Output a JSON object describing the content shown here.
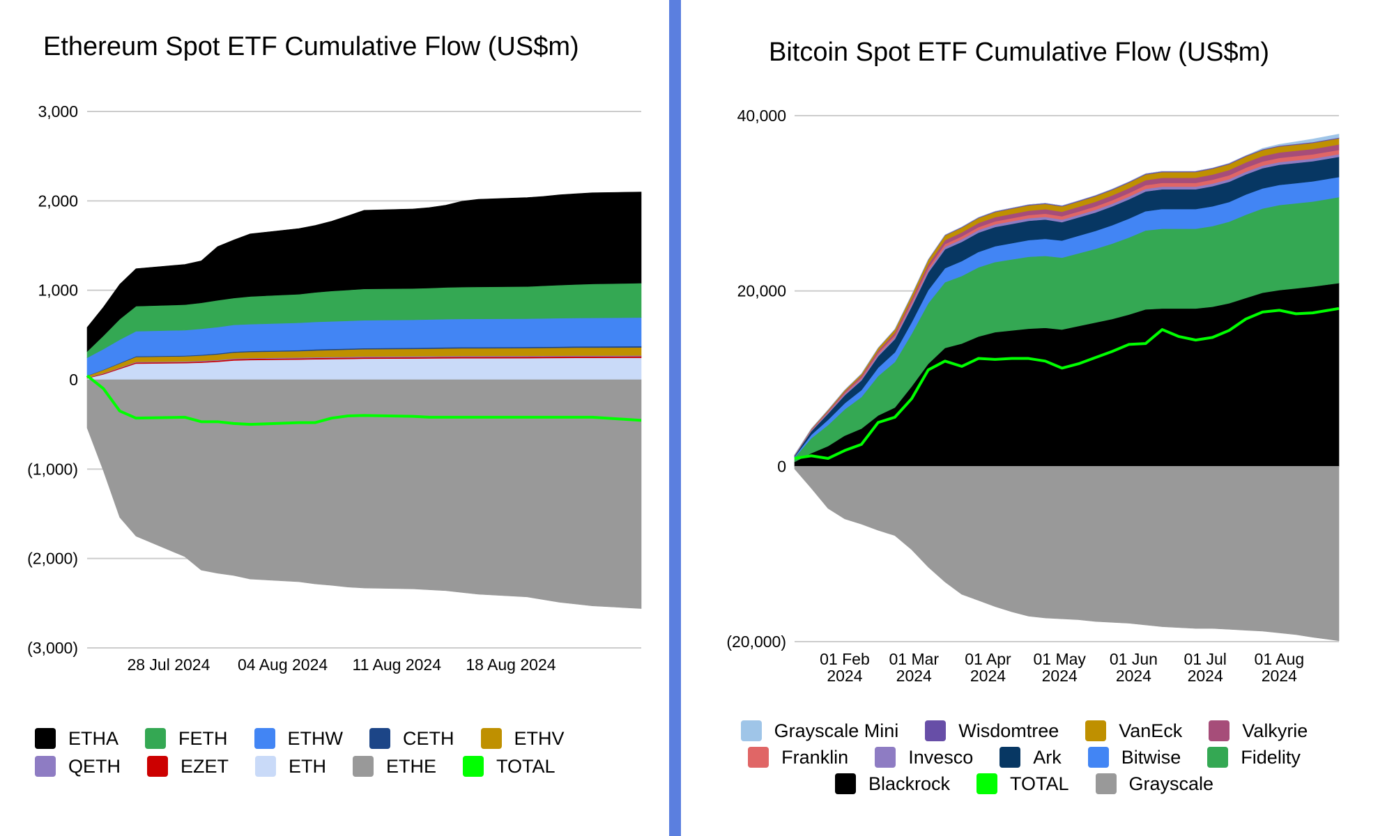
{
  "charts": {
    "eth": {
      "title": "Ethereum Spot ETF Cumulative Flow (US$m)",
      "legend": [
        {
          "label": "ETHA",
          "color": "#000000"
        },
        {
          "label": "FETH",
          "color": "#34a853"
        },
        {
          "label": "ETHW",
          "color": "#4285f4"
        },
        {
          "label": "CETH",
          "color": "#1c4587"
        },
        {
          "label": "ETHV",
          "color": "#bf9000"
        },
        {
          "label": "QETH",
          "color": "#8e7cc3"
        },
        {
          "label": "EZET",
          "color": "#cc0000"
        },
        {
          "label": "ETH",
          "color": "#c9daf8"
        },
        {
          "label": "ETHE",
          "color": "#999999"
        },
        {
          "label": "TOTAL",
          "color": "#00ff00"
        }
      ]
    },
    "btc": {
      "title": "Bitcoin Spot ETF Cumulative Flow (US$m)",
      "legend": [
        {
          "label": "Grayscale Mini",
          "color": "#9fc5e8"
        },
        {
          "label": "Wisdomtree",
          "color": "#674ea7"
        },
        {
          "label": "VanEck",
          "color": "#bf9000"
        },
        {
          "label": "Valkyrie",
          "color": "#a64d79"
        },
        {
          "label": "Franklin",
          "color": "#e06666"
        },
        {
          "label": "Invesco",
          "color": "#8e7cc3"
        },
        {
          "label": "Ark",
          "color": "#073763"
        },
        {
          "label": "Bitwise",
          "color": "#4285f4"
        },
        {
          "label": "Fidelity",
          "color": "#34a853"
        },
        {
          "label": "Blackrock",
          "color": "#000000"
        },
        {
          "label": "TOTAL",
          "color": "#00ff00"
        },
        {
          "label": "Grayscale",
          "color": "#999999"
        }
      ]
    }
  },
  "chart_data": [
    {
      "type": "area",
      "title": "Ethereum Spot ETF Cumulative Flow (US$m)",
      "stacked": true,
      "ylim": [
        -3000,
        3000
      ],
      "y_ticks": [
        {
          "v": 3000,
          "label": "3,000"
        },
        {
          "v": 2000,
          "label": "2,000"
        },
        {
          "v": 1000,
          "label": "1,000"
        },
        {
          "v": 0,
          "label": "0"
        },
        {
          "v": -1000,
          "label": "(1,000)"
        },
        {
          "v": -2000,
          "label": "(2,000)"
        },
        {
          "v": -3000,
          "label": "(3,000)"
        }
      ],
      "x_range": [
        "2024-07-23",
        "2024-08-26"
      ],
      "x_ticks": [
        {
          "date": "2024-07-28",
          "label": "28 Jul 2024"
        },
        {
          "date": "2024-08-04",
          "label": "04 Aug 2024"
        },
        {
          "date": "2024-08-11",
          "label": "11 Aug 2024"
        },
        {
          "date": "2024-08-18",
          "label": "18 Aug 2024"
        }
      ],
      "grid": true,
      "legend_position": "bottom",
      "x": [
        "2024-07-23",
        "2024-07-24",
        "2024-07-25",
        "2024-07-26",
        "2024-07-29",
        "2024-07-30",
        "2024-07-31",
        "2024-08-01",
        "2024-08-02",
        "2024-08-05",
        "2024-08-06",
        "2024-08-07",
        "2024-08-08",
        "2024-08-09",
        "2024-08-12",
        "2024-08-13",
        "2024-08-14",
        "2024-08-15",
        "2024-08-16",
        "2024-08-19",
        "2024-08-20",
        "2024-08-21",
        "2024-08-22",
        "2024-08-23",
        "2024-08-26"
      ],
      "positive_series": [
        {
          "name": "ETH",
          "color": "#c9daf8",
          "values": [
            15,
            60,
            120,
            180,
            185,
            190,
            200,
            215,
            220,
            225,
            228,
            230,
            232,
            235,
            237,
            238,
            239,
            240,
            240,
            241,
            242,
            243,
            244,
            244,
            245
          ]
        },
        {
          "name": "EZET",
          "color": "#cc0000",
          "values": [
            5,
            8,
            10,
            12,
            12,
            13,
            13,
            14,
            14,
            14,
            15,
            15,
            15,
            15,
            15,
            15,
            16,
            16,
            16,
            16,
            16,
            16,
            16,
            16,
            16
          ]
        },
        {
          "name": "QETH",
          "color": "#8e7cc3",
          "values": [
            3,
            5,
            6,
            7,
            7,
            8,
            8,
            8,
            8,
            9,
            9,
            9,
            9,
            9,
            9,
            9,
            9,
            9,
            9,
            9,
            9,
            9,
            9,
            9,
            9
          ]
        },
        {
          "name": "ETHV",
          "color": "#bf9000",
          "values": [
            20,
            35,
            45,
            55,
            57,
            59,
            62,
            66,
            68,
            72,
            75,
            78,
            80,
            82,
            83,
            84,
            85,
            86,
            86,
            87,
            88,
            89,
            90,
            90,
            91
          ]
        },
        {
          "name": "CETH",
          "color": "#1c4587",
          "values": [
            2,
            4,
            6,
            8,
            8,
            9,
            10,
            10,
            11,
            11,
            12,
            12,
            12,
            12,
            13,
            13,
            13,
            13,
            13,
            13,
            13,
            13,
            13,
            14,
            14
          ]
        },
        {
          "name": "ETHW",
          "color": "#4285f4",
          "values": [
            200,
            230,
            260,
            280,
            285,
            290,
            295,
            300,
            300,
            305,
            307,
            308,
            310,
            312,
            313,
            314,
            315,
            315,
            316,
            316,
            317,
            318,
            318,
            318,
            320
          ]
        },
        {
          "name": "FETH",
          "color": "#34a853",
          "values": [
            70,
            150,
            230,
            280,
            285,
            290,
            300,
            300,
            310,
            320,
            330,
            340,
            345,
            350,
            350,
            352,
            355,
            357,
            358,
            360,
            365,
            370,
            375,
            380,
            385
          ]
        },
        {
          "name": "ETHA",
          "color": "#000000",
          "values": [
            270,
            320,
            390,
            420,
            450,
            470,
            600,
            650,
            700,
            735,
            750,
            780,
            830,
            880,
            890,
            900,
            920,
            960,
            980,
            995,
            1000,
            1010,
            1015,
            1020,
            1020
          ]
        }
      ],
      "negative_series": [
        {
          "name": "ETHE",
          "color": "#999999",
          "values": [
            -540,
            -1020,
            -1540,
            -1750,
            -1980,
            -2130,
            -2165,
            -2190,
            -2230,
            -2260,
            -2285,
            -2300,
            -2320,
            -2330,
            -2340,
            -2350,
            -2360,
            -2380,
            -2400,
            -2430,
            -2460,
            -2490,
            -2510,
            -2530,
            -2560
          ]
        }
      ],
      "line_series": [
        {
          "name": "TOTAL",
          "color": "#00ff00",
          "values": [
            45,
            -100,
            -350,
            -430,
            -420,
            -470,
            -470,
            -490,
            -500,
            -480,
            -480,
            -430,
            -405,
            -400,
            -410,
            -420,
            -420,
            -420,
            -420,
            -420,
            -420,
            -420,
            -420,
            -420,
            -455
          ]
        }
      ]
    },
    {
      "type": "area",
      "title": "Bitcoin Spot ETF Cumulative Flow (US$m)",
      "stacked": true,
      "ylim": [
        -20000,
        40000
      ],
      "y_ticks": [
        {
          "v": 40000,
          "label": "40,000"
        },
        {
          "v": 20000,
          "label": "20,000"
        },
        {
          "v": 0,
          "label": "0"
        },
        {
          "v": -20000,
          "label": "(20,000)"
        }
      ],
      "x_range": [
        "2024-01-11",
        "2024-08-26"
      ],
      "x_ticks": [
        {
          "date": "2024-02-01",
          "label": [
            "01 Feb",
            "2024"
          ]
        },
        {
          "date": "2024-03-01",
          "label": [
            "01 Mar",
            "2024"
          ]
        },
        {
          "date": "2024-04-01",
          "label": [
            "01 Apr",
            "2024"
          ]
        },
        {
          "date": "2024-05-01",
          "label": [
            "01 May",
            "2024"
          ]
        },
        {
          "date": "2024-06-01",
          "label": [
            "01 Jun",
            "2024"
          ]
        },
        {
          "date": "2024-07-01",
          "label": [
            "01 Jul",
            "2024"
          ]
        },
        {
          "date": "2024-08-01",
          "label": [
            "01 Aug",
            "2024"
          ]
        }
      ],
      "grid": true,
      "legend_position": "bottom",
      "x": [
        "2024-01-11",
        "2024-01-18",
        "2024-01-25",
        "2024-02-01",
        "2024-02-08",
        "2024-02-15",
        "2024-02-22",
        "2024-02-29",
        "2024-03-07",
        "2024-03-14",
        "2024-03-21",
        "2024-03-28",
        "2024-04-04",
        "2024-04-11",
        "2024-04-18",
        "2024-04-25",
        "2024-05-02",
        "2024-05-09",
        "2024-05-16",
        "2024-05-23",
        "2024-05-30",
        "2024-06-06",
        "2024-06-13",
        "2024-06-20",
        "2024-06-27",
        "2024-07-04",
        "2024-07-11",
        "2024-07-18",
        "2024-07-25",
        "2024-08-01",
        "2024-08-08",
        "2024-08-15",
        "2024-08-26"
      ],
      "positive_series": [
        {
          "name": "Blackrock",
          "color": "#000000",
          "values": [
            500,
            1500,
            2300,
            3500,
            4300,
            5800,
            6700,
            9100,
            11700,
            13500,
            14000,
            14800,
            15300,
            15500,
            15700,
            15800,
            15600,
            16000,
            16400,
            16800,
            17300,
            17900,
            18000,
            18000,
            18000,
            18200,
            18600,
            19200,
            19800,
            20100,
            20300,
            20500,
            20900
          ]
        },
        {
          "name": "Fidelity",
          "color": "#34a853",
          "values": [
            500,
            1700,
            2400,
            3000,
            3600,
            4500,
            5200,
            6000,
            6900,
            7500,
            7700,
            7900,
            8000,
            8100,
            8200,
            8200,
            8200,
            8300,
            8400,
            8600,
            8800,
            9000,
            9100,
            9100,
            9100,
            9200,
            9300,
            9500,
            9600,
            9700,
            9700,
            9700,
            9800
          ]
        },
        {
          "name": "Bitwise",
          "color": "#4285f4",
          "values": [
            100,
            400,
            600,
            700,
            800,
            950,
            1100,
            1300,
            1500,
            1600,
            1700,
            1750,
            1800,
            1850,
            1900,
            1950,
            1950,
            2000,
            2050,
            2100,
            2150,
            2200,
            2250,
            2250,
            2250,
            2250,
            2250,
            2300,
            2300,
            2300,
            2300,
            2300,
            2300
          ]
        },
        {
          "name": "Ark",
          "color": "#073763",
          "values": [
            100,
            400,
            700,
            900,
            1100,
            1300,
            1500,
            1800,
            2000,
            2150,
            2200,
            2200,
            2200,
            2200,
            2200,
            2200,
            2100,
            2100,
            2100,
            2150,
            2200,
            2250,
            2250,
            2250,
            2250,
            2300,
            2300,
            2300,
            2300,
            2300,
            2300,
            2300,
            2300
          ]
        },
        {
          "name": "Invesco",
          "color": "#8e7cc3",
          "values": [
            30,
            80,
            120,
            150,
            170,
            200,
            220,
            250,
            270,
            290,
            300,
            300,
            300,
            300,
            300,
            300,
            290,
            290,
            300,
            300,
            300,
            300,
            300,
            300,
            300,
            300,
            300,
            300,
            300,
            300,
            300,
            300,
            300
          ]
        },
        {
          "name": "Franklin",
          "color": "#e06666",
          "values": [
            30,
            70,
            100,
            130,
            160,
            200,
            230,
            260,
            290,
            310,
            320,
            330,
            340,
            350,
            360,
            370,
            380,
            380,
            390,
            400,
            410,
            420,
            430,
            430,
            430,
            440,
            450,
            460,
            470,
            480,
            480,
            480,
            490
          ]
        },
        {
          "name": "Valkyrie",
          "color": "#a64d79",
          "values": [
            20,
            60,
            100,
            150,
            200,
            250,
            300,
            350,
            400,
            450,
            460,
            470,
            480,
            490,
            500,
            510,
            520,
            530,
            540,
            550,
            560,
            570,
            580,
            580,
            590,
            590,
            600,
            610,
            620,
            620,
            620,
            620,
            620
          ]
        },
        {
          "name": "VanEck",
          "color": "#bf9000",
          "values": [
            20,
            60,
            100,
            150,
            200,
            280,
            350,
            420,
            480,
            520,
            540,
            560,
            580,
            590,
            600,
            600,
            600,
            610,
            620,
            620,
            630,
            640,
            650,
            650,
            650,
            650,
            660,
            670,
            680,
            680,
            680,
            680,
            690
          ]
        },
        {
          "name": "Wisdomtree",
          "color": "#674ea7",
          "values": [
            5,
            10,
            15,
            20,
            25,
            30,
            40,
            50,
            60,
            70,
            75,
            80,
            85,
            90,
            90,
            90,
            90,
            95,
            100,
            100,
            100,
            100,
            100,
            100,
            100,
            100,
            100,
            100,
            100,
            100,
            100,
            100,
            100
          ]
        },
        {
          "name": "Grayscale Mini",
          "color": "#9fc5e8",
          "values": [
            0,
            0,
            0,
            0,
            0,
            0,
            0,
            0,
            0,
            0,
            0,
            0,
            0,
            0,
            0,
            0,
            0,
            0,
            0,
            0,
            0,
            0,
            0,
            0,
            0,
            0,
            0,
            0,
            100,
            150,
            250,
            350,
            400
          ]
        }
      ],
      "negative_series": [
        {
          "name": "Grayscale",
          "color": "#999999",
          "values": [
            -300,
            -2500,
            -4800,
            -6000,
            -6600,
            -7300,
            -7900,
            -9500,
            -11500,
            -13200,
            -14600,
            -15300,
            -16000,
            -16600,
            -17100,
            -17300,
            -17400,
            -17500,
            -17700,
            -17800,
            -17900,
            -18100,
            -18300,
            -18400,
            -18500,
            -18500,
            -18600,
            -18700,
            -18800,
            -19000,
            -19200,
            -19500,
            -19900
          ]
        }
      ],
      "line_series": [
        {
          "name": "TOTAL",
          "color": "#00ff00",
          "values": [
            900,
            1200,
            900,
            1800,
            2500,
            5000,
            5600,
            7700,
            11000,
            12000,
            11400,
            12300,
            12200,
            12300,
            12300,
            12000,
            11200,
            11700,
            12400,
            13100,
            13900,
            14000,
            15600,
            14800,
            14400,
            14700,
            15500,
            16800,
            17600,
            17800,
            17400,
            17500,
            18000
          ]
        }
      ]
    }
  ]
}
